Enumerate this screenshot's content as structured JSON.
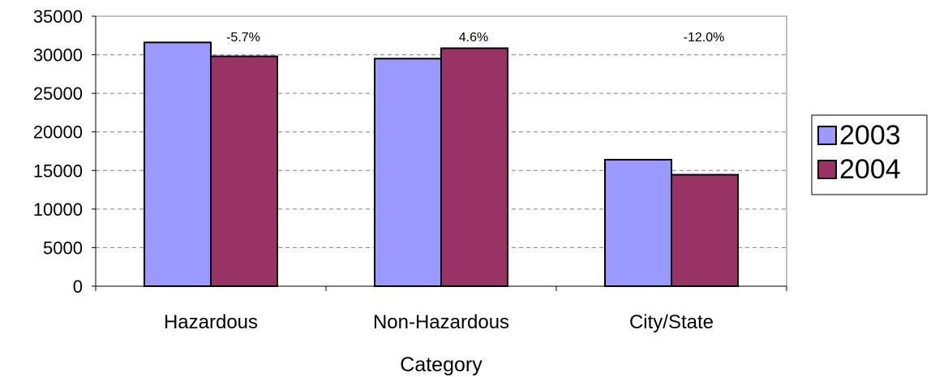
{
  "chart_data": {
    "type": "bar",
    "title": "",
    "xlabel": "Category",
    "ylabel": "",
    "categories": [
      "Hazardous",
      "Non-Hazardous",
      "City/State"
    ],
    "series": [
      {
        "name": "2003",
        "values": [
          31600,
          29500,
          16400
        ],
        "color": "#9999ff"
      },
      {
        "name": "2004",
        "values": [
          29800,
          30850,
          14450
        ],
        "color": "#993366"
      }
    ],
    "annotations": [
      "-5.7%",
      "4.6%",
      "-12.0%"
    ],
    "ylim": [
      0,
      35000
    ],
    "yticks": [
      0,
      5000,
      10000,
      15000,
      20000,
      25000,
      30000,
      35000
    ],
    "grid": true,
    "legend_position": "right"
  }
}
